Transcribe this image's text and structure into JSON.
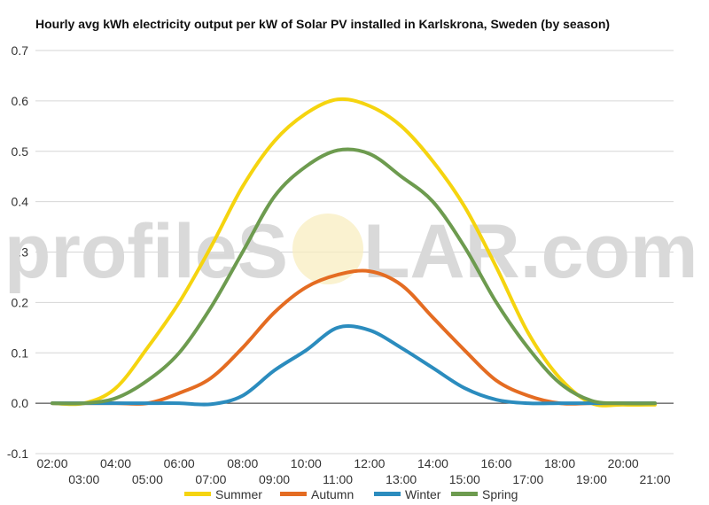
{
  "title": "Hourly avg kWh electricity output per kW of Solar PV installed in Karlskrona, Sweden (by season)",
  "watermark": {
    "part1": "profileS",
    "part2": "LAR.com"
  },
  "chart_data": {
    "type": "line",
    "ylim": [
      -0.1,
      0.7
    ],
    "y_ticks": [
      -0.1,
      0.0,
      0.1,
      0.2,
      0.3,
      0.4,
      0.5,
      0.6,
      0.7
    ],
    "x_ticks_upper": [
      "02:00",
      "04:00",
      "06:00",
      "08:00",
      "10:00",
      "12:00",
      "14:00",
      "16:00",
      "18:00",
      "20:00"
    ],
    "x_ticks_lower": [
      "03:00",
      "05:00",
      "07:00",
      "09:00",
      "11:00",
      "13:00",
      "15:00",
      "17:00",
      "19:00",
      "21:00"
    ],
    "x_hours": [
      2,
      3,
      4,
      5,
      6,
      7,
      8,
      9,
      10,
      11,
      12,
      13,
      14,
      15,
      16,
      17,
      18,
      19,
      20,
      21
    ],
    "legend_position": "bottom",
    "grid": true,
    "series": [
      {
        "name": "Summer",
        "color": "#f5d40f",
        "values": [
          0.0,
          0.0,
          0.03,
          0.11,
          0.2,
          0.31,
          0.43,
          0.52,
          0.575,
          0.603,
          0.59,
          0.55,
          0.48,
          0.39,
          0.27,
          0.14,
          0.05,
          0.0,
          -0.003,
          -0.003
        ]
      },
      {
        "name": "Autumn",
        "color": "#e46c22",
        "values": [
          0.0,
          0.0,
          0.0,
          0.0,
          0.02,
          0.05,
          0.11,
          0.18,
          0.23,
          0.255,
          0.262,
          0.235,
          0.17,
          0.105,
          0.045,
          0.015,
          0.0,
          0.0,
          0.0,
          0.0
        ]
      },
      {
        "name": "Winter",
        "color": "#2b8cbe",
        "values": [
          0.0,
          0.0,
          0.0,
          0.0,
          0.0,
          -0.002,
          0.015,
          0.065,
          0.105,
          0.15,
          0.145,
          0.11,
          0.07,
          0.03,
          0.007,
          0.0,
          0.0,
          0.0,
          0.0,
          0.0
        ]
      },
      {
        "name": "Spring",
        "color": "#6d9b4f",
        "values": [
          0.0,
          0.0,
          0.01,
          0.045,
          0.1,
          0.19,
          0.3,
          0.41,
          0.47,
          0.502,
          0.495,
          0.45,
          0.4,
          0.31,
          0.2,
          0.11,
          0.04,
          0.005,
          0.0,
          0.0
        ]
      }
    ]
  }
}
